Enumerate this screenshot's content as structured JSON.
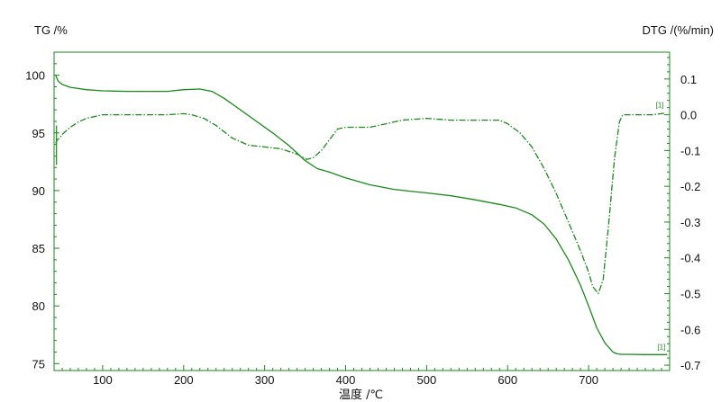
{
  "chart_data": {
    "type": "line",
    "title": "",
    "xlabel": "温度 /℃",
    "ylabel_left": "TG /%",
    "ylabel_right": "DTG /(%/min)",
    "x_ticks": [
      100,
      200,
      300,
      400,
      500,
      600,
      700
    ],
    "y_left_ticks": [
      100,
      95,
      90,
      85,
      80,
      75
    ],
    "y_right_ticks": [
      0.1,
      0.0,
      -0.1,
      -0.2,
      -0.3,
      -0.4,
      -0.5,
      -0.6,
      -0.7
    ],
    "y_right_tick_labels": [
      "0.1",
      "0.0",
      "-0.1",
      "-0.2",
      "-0.3",
      "-0.4",
      "-0.5",
      "-0.6",
      "-0.7"
    ],
    "xlim": [
      40,
      800
    ],
    "ylim_left": [
      74.4,
      102.0
    ],
    "ylim_right": [
      -0.715,
      0.175
    ],
    "grid": false,
    "legend": "none",
    "series_color": "#1a8a1a",
    "series": [
      {
        "axis": "left",
        "style": "solid",
        "marker_label": "[1]",
        "x": [
          42,
          45,
          50,
          60,
          80,
          100,
          130,
          160,
          180,
          200,
          220,
          235,
          250,
          270,
          290,
          310,
          330,
          350,
          365,
          380,
          400,
          430,
          460,
          480,
          500,
          530,
          560,
          590,
          610,
          630,
          645,
          660,
          675,
          690,
          700,
          710,
          720,
          730,
          735,
          740,
          750,
          770,
          790,
          797
        ],
        "y": [
          100.0,
          99.5,
          99.2,
          98.95,
          98.75,
          98.65,
          98.6,
          98.6,
          98.6,
          98.75,
          98.8,
          98.6,
          98.0,
          97.0,
          96.0,
          95.0,
          93.9,
          92.6,
          91.9,
          91.6,
          91.1,
          90.5,
          90.1,
          89.95,
          89.8,
          89.55,
          89.2,
          88.8,
          88.5,
          87.9,
          87.1,
          85.8,
          84.0,
          81.8,
          80.0,
          78.1,
          76.8,
          76.0,
          75.85,
          75.8,
          75.8,
          75.78,
          75.78,
          75.78
        ]
      },
      {
        "axis": "right",
        "style": "dashdot",
        "marker_label": "[1]",
        "x": [
          42,
          44,
          47,
          50,
          55,
          60,
          70,
          80,
          90,
          100,
          130,
          160,
          180,
          200,
          210,
          225,
          240,
          260,
          280,
          300,
          320,
          340,
          352,
          360,
          370,
          380,
          390,
          400,
          430,
          450,
          470,
          500,
          530,
          560,
          590,
          600,
          615,
          630,
          645,
          660,
          675,
          690,
          700,
          705,
          712,
          718,
          725,
          732,
          738,
          742,
          748,
          760,
          780,
          795
        ],
        "y": [
          -0.08,
          -0.07,
          -0.065,
          -0.055,
          -0.045,
          -0.035,
          -0.02,
          -0.01,
          -0.005,
          0.0,
          0.0,
          0.0,
          0.0,
          0.003,
          0.0,
          -0.01,
          -0.03,
          -0.065,
          -0.085,
          -0.09,
          -0.095,
          -0.11,
          -0.125,
          -0.12,
          -0.1,
          -0.07,
          -0.04,
          -0.035,
          -0.035,
          -0.025,
          -0.015,
          -0.01,
          -0.015,
          -0.015,
          -0.015,
          -0.025,
          -0.05,
          -0.09,
          -0.15,
          -0.22,
          -0.3,
          -0.38,
          -0.44,
          -0.48,
          -0.5,
          -0.46,
          -0.3,
          -0.12,
          -0.02,
          0.0,
          0.0,
          0.0,
          0.0,
          0.005
        ]
      }
    ]
  }
}
